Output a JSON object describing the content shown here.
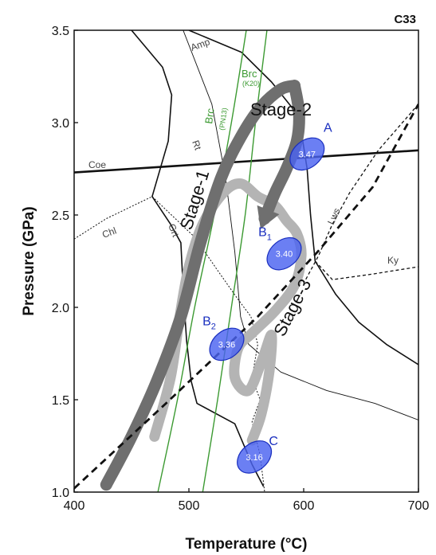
{
  "chart_data": {
    "type": "line",
    "panel_label": "C33",
    "xlabel": "Temperature (°C)",
    "ylabel": "Pressure (GPa)",
    "xlim": [
      400,
      700
    ],
    "ylim": [
      1.0,
      3.5
    ],
    "x_ticks": [
      400,
      500,
      600,
      700
    ],
    "y_ticks": [
      1.0,
      1.5,
      2.0,
      2.5,
      3.0,
      3.5
    ],
    "x_tick_labels": [
      "400",
      "500",
      "600",
      "700"
    ],
    "y_tick_labels": [
      "1.0",
      "1.5",
      "2.0",
      "2.5",
      "3.0",
      "3.5"
    ],
    "grid": false,
    "phase_boundaries": [
      {
        "label": "Coe",
        "style": "solid-thick",
        "points": [
          [
            400,
            2.73
          ],
          [
            700,
            2.85
          ]
        ]
      },
      {
        "label": "Amp",
        "style": "solid",
        "points": [
          [
            500,
            3.5
          ],
          [
            546,
            3.38
          ],
          [
            572,
            3.22
          ],
          [
            590,
            3.08
          ],
          [
            598,
            2.95
          ],
          [
            603,
            2.75
          ],
          [
            606,
            2.5
          ],
          [
            610,
            2.25
          ],
          [
            628,
            2.07
          ],
          [
            648,
            1.92
          ],
          [
            672,
            1.8
          ],
          [
            700,
            1.69
          ]
        ]
      },
      {
        "label": "Rt",
        "style": "solid-thin",
        "points": [
          [
            495,
            3.5
          ],
          [
            520,
            3.1
          ],
          [
            532,
            2.7
          ],
          [
            540,
            2.3
          ],
          [
            545,
            1.95
          ],
          [
            552,
            1.8
          ],
          [
            580,
            1.65
          ],
          [
            620,
            1.55
          ],
          [
            662,
            1.48
          ],
          [
            700,
            1.39
          ]
        ]
      },
      {
        "label": "Grt",
        "style": "solid",
        "points": [
          [
            450,
            3.5
          ],
          [
            477,
            3.3
          ],
          [
            485,
            3.15
          ],
          [
            482,
            2.9
          ],
          [
            468,
            2.6
          ],
          [
            484,
            2.45
          ],
          [
            493,
            2.35
          ],
          [
            495,
            2.1
          ],
          [
            498,
            1.82
          ],
          [
            502,
            1.6
          ],
          [
            507,
            1.48
          ],
          [
            540,
            1.37
          ],
          [
            555,
            1.15
          ],
          [
            565,
            1.03
          ]
        ]
      },
      {
        "label": "Lws",
        "style": "dashed",
        "points": [
          [
            700,
            3.1
          ],
          [
            665,
            2.85
          ],
          [
            640,
            2.62
          ],
          [
            625,
            2.45
          ],
          [
            613,
            2.28
          ],
          [
            600,
            2.13
          ]
        ]
      },
      {
        "label": "Ky",
        "style": "dashed",
        "points": [
          [
            610,
            2.25
          ],
          [
            625,
            2.15
          ],
          [
            660,
            2.18
          ],
          [
            700,
            2.22
          ]
        ]
      },
      {
        "label": "Chl",
        "style": "dotted",
        "points": [
          [
            400,
            2.37
          ],
          [
            428,
            2.48
          ],
          [
            468,
            2.6
          ],
          [
            505,
            2.38
          ],
          [
            525,
            2.2
          ],
          [
            542,
            2.05
          ],
          [
            554,
            1.95
          ],
          [
            560,
            1.8
          ],
          [
            555,
            1.62
          ],
          [
            562,
            1.5
          ],
          [
            555,
            1.38
          ],
          [
            562,
            1.2
          ],
          [
            566,
            1.0
          ]
        ]
      }
    ],
    "reaction_lines": [
      {
        "label": "Brc",
        "sublabel": "(PN13)",
        "points": [
          [
            473,
            1.0
          ],
          [
            490,
            1.5
          ],
          [
            505,
            2.0
          ],
          [
            522,
            2.5
          ],
          [
            537,
            3.0
          ],
          [
            550,
            3.5
          ]
        ]
      },
      {
        "label": "Brc",
        "sublabel": "(K20)",
        "points": [
          [
            512,
            1.0
          ],
          [
            525,
            1.5
          ],
          [
            537,
            2.0
          ],
          [
            549,
            2.5
          ],
          [
            558,
            3.0
          ],
          [
            568,
            3.5
          ]
        ]
      }
    ],
    "stage_lines": [
      {
        "label": "Stage-3",
        "style": "dashed-thick",
        "points": [
          [
            400,
            1.02
          ],
          [
            480,
            1.48
          ],
          [
            560,
            1.95
          ],
          [
            612,
            2.3
          ],
          [
            660,
            2.65
          ],
          [
            700,
            3.1
          ]
        ]
      }
    ],
    "paths": [
      {
        "label": "Stage-1",
        "color": "#6f6f6f",
        "points": [
          [
            428,
            1.04
          ],
          [
            450,
            1.3
          ],
          [
            472,
            1.6
          ],
          [
            493,
            1.95
          ],
          [
            510,
            2.35
          ],
          [
            528,
            2.7
          ],
          [
            545,
            2.92
          ],
          [
            562,
            3.08
          ],
          [
            580,
            3.18
          ],
          [
            592,
            3.2
          ]
        ]
      },
      {
        "label": "Stage-2",
        "color": "#6f6f6f",
        "points": [
          [
            592,
            3.2
          ],
          [
            596,
            3.05
          ],
          [
            594,
            2.9
          ],
          [
            585,
            2.75
          ],
          [
            575,
            2.62
          ],
          [
            566,
            2.48
          ]
        ]
      },
      {
        "label": "",
        "color": "#b4b4b4",
        "points": [
          [
            470,
            1.3
          ],
          [
            484,
            1.62
          ],
          [
            492,
            1.95
          ],
          [
            500,
            2.22
          ],
          [
            512,
            2.45
          ],
          [
            530,
            2.62
          ],
          [
            545,
            2.67
          ],
          [
            560,
            2.6
          ],
          [
            575,
            2.55
          ],
          [
            585,
            2.47
          ],
          [
            594,
            2.4
          ],
          [
            598,
            2.28
          ],
          [
            592,
            2.12
          ],
          [
            575,
            1.98
          ],
          [
            555,
            1.86
          ],
          [
            543,
            1.78
          ],
          [
            540,
            1.62
          ],
          [
            552,
            1.55
          ],
          [
            564,
            1.72
          ],
          [
            572,
            1.85
          ],
          [
            570,
            1.65
          ],
          [
            563,
            1.42
          ],
          [
            555,
            1.28
          ]
        ]
      }
    ],
    "points": [
      {
        "label": "A",
        "subscript": "",
        "value": "3.47",
        "x": 603,
        "y": 2.83
      },
      {
        "label": "B",
        "subscript": "1",
        "value": "3.40",
        "x": 583,
        "y": 2.29
      },
      {
        "label": "B",
        "subscript": "2",
        "value": "3.36",
        "x": 533,
        "y": 1.8
      },
      {
        "label": "C",
        "subscript": "",
        "value": "3.16",
        "x": 557,
        "y": 1.19
      }
    ]
  }
}
